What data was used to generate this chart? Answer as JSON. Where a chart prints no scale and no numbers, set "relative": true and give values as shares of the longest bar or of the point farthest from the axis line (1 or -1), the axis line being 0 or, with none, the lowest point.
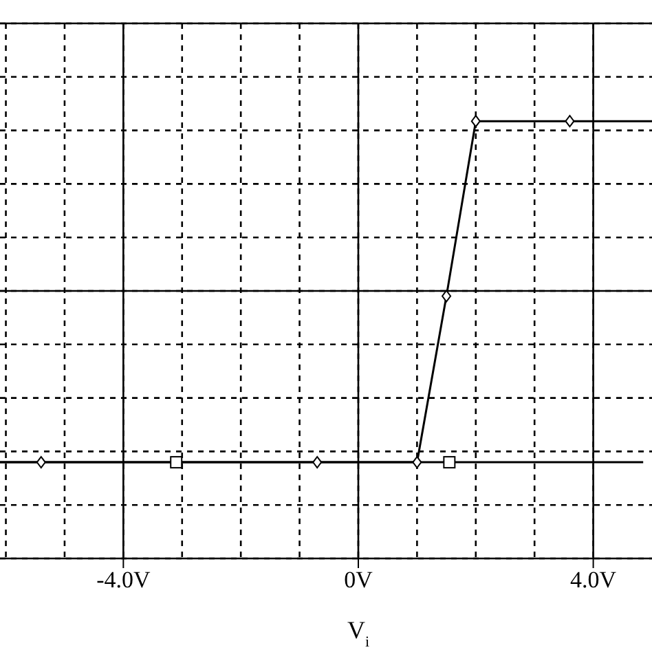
{
  "chart_data": {
    "type": "line",
    "xlabel": "V$_{i}$",
    "relative": true,
    "grid": true,
    "xlim": [
      -6.1,
      5.0
    ],
    "xticks": [
      {
        "value": -6,
        "label": null
      },
      {
        "value": -5,
        "label": null
      },
      {
        "value": -4,
        "label": "-4.0V"
      },
      {
        "value": -3,
        "label": null
      },
      {
        "value": -2,
        "label": null
      },
      {
        "value": -1,
        "label": null
      },
      {
        "value": 0,
        "label": "0V"
      },
      {
        "value": 1,
        "label": null
      },
      {
        "value": 2,
        "label": null
      },
      {
        "value": 3,
        "label": null
      },
      {
        "value": 4,
        "label": "4.0V"
      }
    ],
    "series": [
      {
        "color": "#000000",
        "marker": "square",
        "x": [
          -6.1,
          -3.1,
          1.55,
          4.85
        ],
        "values": [
          0.22,
          0.22,
          0.22,
          0.22
        ]
      },
      {
        "color": "#000000",
        "marker": "diamond",
        "x": [
          -6.1,
          -5.4,
          -0.7,
          1.0,
          1.5,
          2.0,
          3.6,
          5.0
        ],
        "values": [
          0.22,
          0.22,
          0.22,
          0.22,
          0.6,
          1,
          1,
          1
        ]
      }
    ]
  }
}
